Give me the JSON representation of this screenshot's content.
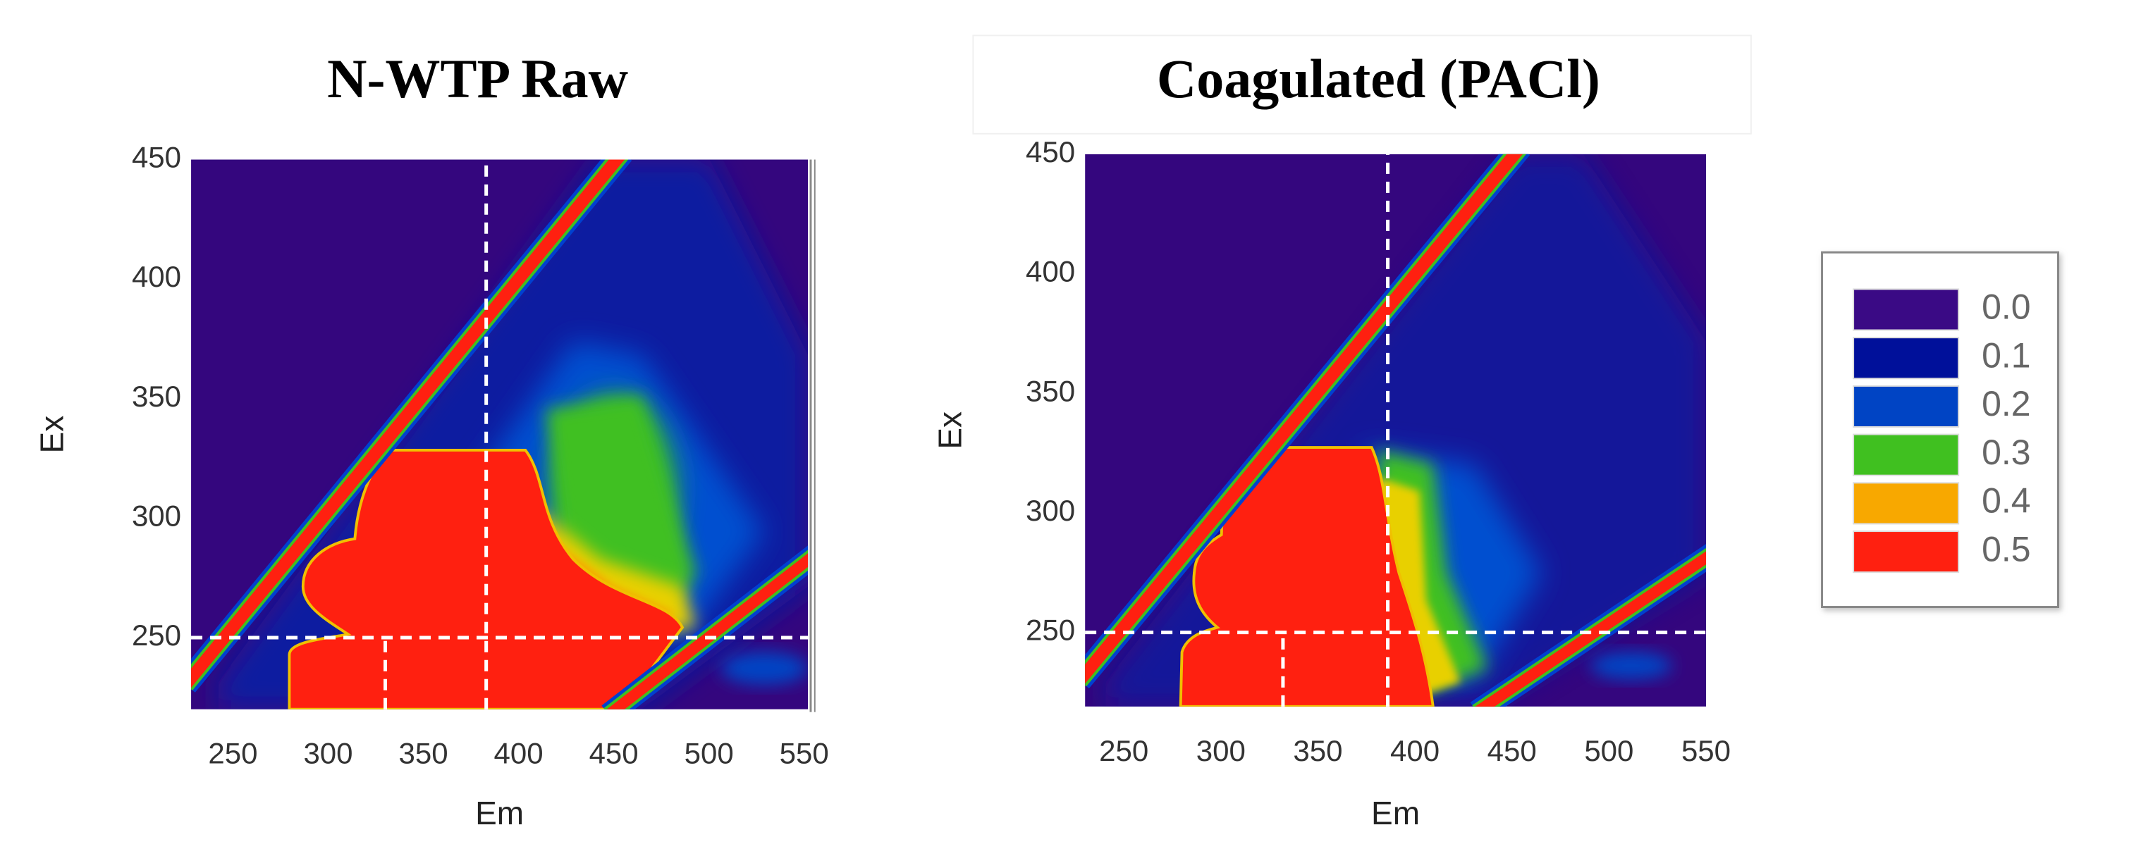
{
  "chart_data": [
    {
      "type": "contour",
      "title": "N-WTP Raw",
      "x_label": "Em",
      "y_label": "Ex",
      "xlim": [
        228,
        552
      ],
      "ylim": [
        220,
        450
      ],
      "xticks": [
        250,
        300,
        350,
        400,
        450,
        500,
        550
      ],
      "yticks": [
        250,
        300,
        350,
        400,
        450
      ],
      "ref_x": [
        330,
        383
      ],
      "ref_y": [
        250
      ]
    },
    {
      "type": "contour",
      "title": "Coagulated  (PACl)",
      "x_label": "Em",
      "y_label": "Ex",
      "xlim": [
        230,
        550
      ],
      "ylim": [
        219,
        450
      ],
      "xticks": [
        250,
        300,
        350,
        400,
        450,
        500,
        550
      ],
      "yticks": [
        250,
        300,
        350,
        400,
        450
      ],
      "ref_x": [
        332,
        386
      ],
      "ref_y": [
        250
      ]
    }
  ],
  "legend": {
    "levels": [
      {
        "value": 0,
        "label": "0.0"
      },
      0.1,
      0.2,
      0.3,
      0.4,
      0.5
    ],
    "colors": [
      "#3a0a85",
      "#00109a",
      "#0044c4",
      "#40c020",
      "#f8a800",
      "#ff2010"
    ]
  }
}
